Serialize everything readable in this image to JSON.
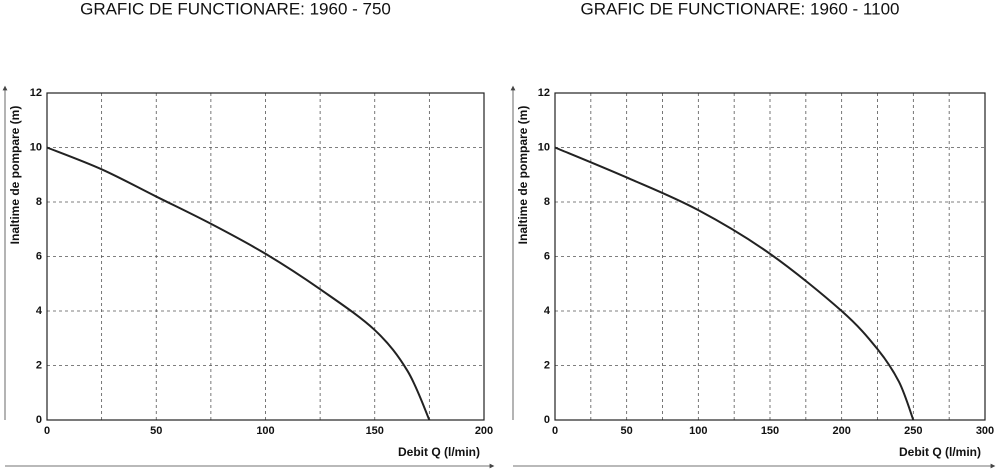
{
  "chart_data": [
    {
      "type": "line",
      "title": "GRAFIC DE FUNCTIONARE: 1960 - 750",
      "x_label": "Debit  Q (l/min)",
      "y_label": "Inaltime de pompare (m)",
      "x": [
        0,
        25,
        50,
        75,
        100,
        125,
        150,
        165,
        175
      ],
      "values": [
        10,
        9.2,
        8.2,
        7.2,
        6.1,
        4.8,
        3.3,
        1.8,
        0
      ],
      "color": "#222222",
      "xlim": [
        0,
        200
      ],
      "ylim": [
        0,
        12
      ],
      "xticks": [
        0,
        50,
        100,
        150,
        200
      ],
      "x_minor_ticks": [
        25,
        75,
        125,
        175
      ],
      "yticks": [
        0,
        2,
        4,
        6,
        8,
        10,
        12
      ],
      "grid": true
    },
    {
      "type": "line",
      "title": "GRAFIC DE FUNCTIONARE: 1960 - 1100",
      "x_label": "Debit  Q (l/min)",
      "y_label": "Inaltime de pompare (m)",
      "x": [
        0,
        50,
        100,
        150,
        200,
        225,
        240,
        250
      ],
      "values": [
        10,
        8.9,
        7.7,
        6.1,
        4.0,
        2.6,
        1.4,
        0
      ],
      "color": "#222222",
      "xlim": [
        0,
        300
      ],
      "ylim": [
        0,
        12
      ],
      "xticks": [
        0,
        50,
        100,
        150,
        200,
        250,
        300
      ],
      "x_minor_ticks": [
        25,
        75,
        125,
        175,
        225,
        275
      ],
      "yticks": [
        0,
        2,
        4,
        6,
        8,
        10,
        12
      ],
      "grid": true
    }
  ]
}
